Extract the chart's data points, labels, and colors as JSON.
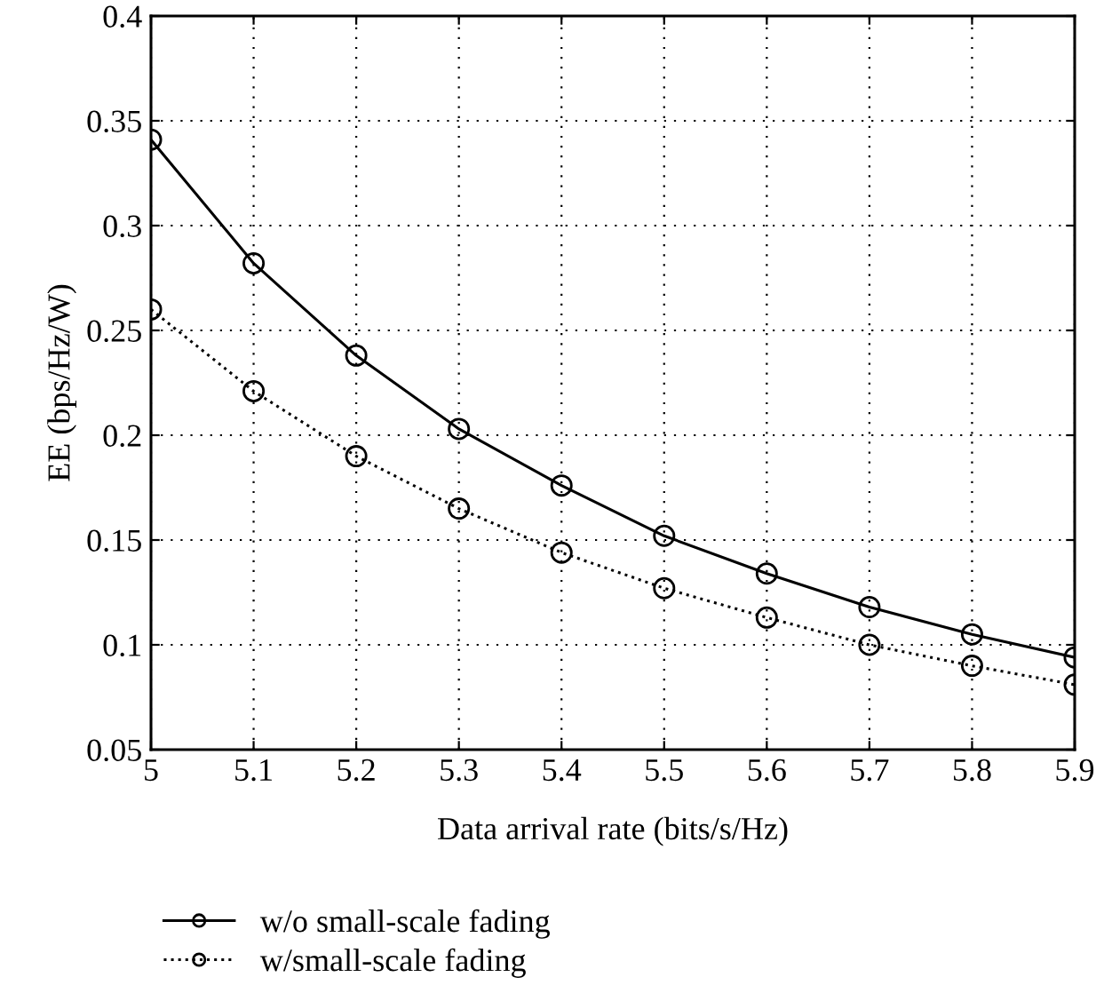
{
  "chart_data": {
    "type": "line",
    "xlabel": "Data arrival rate (bits/s/Hz)",
    "ylabel": "EE (bps/Hz/W)",
    "x": [
      5,
      5.1,
      5.2,
      5.3,
      5.4,
      5.5,
      5.6,
      5.7,
      5.8,
      5.9
    ],
    "xlim": [
      5,
      5.9
    ],
    "xticks": [
      5,
      5.1,
      5.2,
      5.3,
      5.4,
      5.5,
      5.6,
      5.7,
      5.8,
      5.9
    ],
    "ylim": [
      0.05,
      0.4
    ],
    "yticks": [
      0.05,
      0.1,
      0.15,
      0.2,
      0.25,
      0.3,
      0.35,
      0.4
    ],
    "grid": true,
    "legend": "bottom",
    "marker": "circle",
    "series": [
      {
        "name": "w/o small-scale fading",
        "color": "#000000",
        "line_style": "solid",
        "values": [
          0.341,
          0.282,
          0.238,
          0.203,
          0.176,
          0.152,
          0.134,
          0.118,
          0.105,
          0.094
        ]
      },
      {
        "name": "w/small-scale fading",
        "color": "#000000",
        "line_style": "dotted",
        "values": [
          0.26,
          0.221,
          0.19,
          0.165,
          0.144,
          0.127,
          0.113,
          0.1,
          0.09,
          0.081
        ]
      }
    ]
  }
}
